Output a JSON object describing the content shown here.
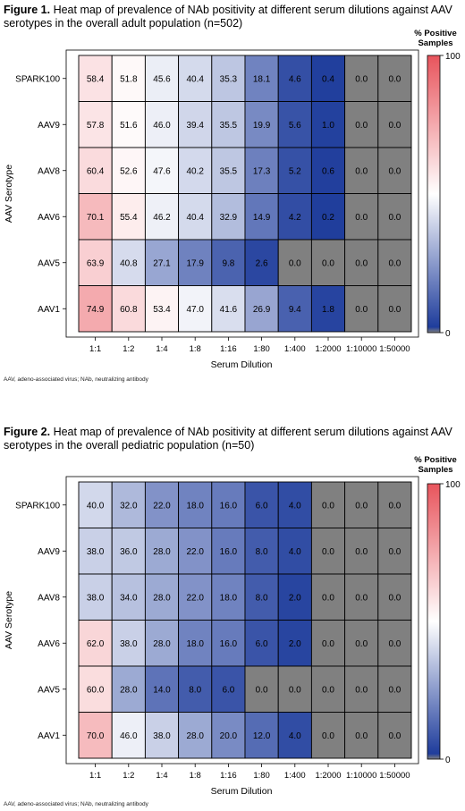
{
  "figures": [
    {
      "caption_label": "Figure 1.",
      "caption_text": " Heat map of prevalence of NAb positivity at different serum dilutions against AAV serotypes in the overall adult population (n=502)",
      "footnote": "AAV, adeno-associated virus; NAb, neutralizing antibody"
    },
    {
      "caption_label": "Figure 2.",
      "caption_text": " Heat map of prevalence of NAb positivity at different serum dilutions against AAV serotypes in the overall pediatric population (n=50)",
      "footnote": "AAV, adeno-associated virus; NAb, neutralizing antibody"
    }
  ],
  "colors": {
    "high": "#e8545c",
    "mid": "#ffffff",
    "low": "#1f3d9c",
    "zero": "#808080",
    "border": "#000000"
  },
  "chart_data": [
    {
      "type": "heatmap",
      "xlabel": "Serum Dilution",
      "ylabel": "AAV Serotype",
      "legend_title": [
        "% Positive",
        "Samples"
      ],
      "legend_range": [
        0,
        100
      ],
      "legend_ticks": [
        "100",
        "0"
      ],
      "x": [
        "1:1",
        "1:2",
        "1:4",
        "1:8",
        "1:16",
        "1:80",
        "1:400",
        "1:2000",
        "1:10000",
        "1:50000"
      ],
      "y": [
        "SPARK100",
        "AAV9",
        "AAV8",
        "AAV6",
        "AAV5",
        "AAV1"
      ],
      "values": [
        [
          58.4,
          51.8,
          45.6,
          40.4,
          35.3,
          18.1,
          4.6,
          0.4,
          0.0,
          0.0
        ],
        [
          57.8,
          51.6,
          46.0,
          39.4,
          35.5,
          19.9,
          5.6,
          1.0,
          0.0,
          0.0
        ],
        [
          60.4,
          52.6,
          47.6,
          40.2,
          35.5,
          17.3,
          5.2,
          0.6,
          0.0,
          0.0
        ],
        [
          70.1,
          55.4,
          46.2,
          40.4,
          32.9,
          14.9,
          4.2,
          0.2,
          0.0,
          0.0
        ],
        [
          63.9,
          40.8,
          27.1,
          17.9,
          9.8,
          2.6,
          0.0,
          0.0,
          0.0,
          0.0
        ],
        [
          74.9,
          60.8,
          53.4,
          47.0,
          41.6,
          26.9,
          9.4,
          1.8,
          0.0,
          0.0
        ]
      ],
      "labels": [
        [
          "58.4",
          "51.8",
          "45.6",
          "40.4",
          "35.3",
          "18.1",
          "4.6",
          "0.4",
          "0.0",
          "0.0"
        ],
        [
          "57.8",
          "51.6",
          "46.0",
          "39.4",
          "35.5",
          "19.9",
          "5.6",
          "1.0",
          "0.0",
          "0.0"
        ],
        [
          "60.4",
          "52.6",
          "47.6",
          "40.2",
          "35.5",
          "17.3",
          "5.2",
          "0.6",
          "0.0",
          "0.0"
        ],
        [
          "70.1",
          "55.4",
          "46.2",
          "40.4",
          "32.9",
          "14.9",
          "4.2",
          "0.2",
          "0.0",
          "0.0"
        ],
        [
          "63.9",
          "40.8",
          "27.1",
          "17.9",
          "9.8",
          "2.6",
          "0.0",
          "0.0",
          "0.0",
          "0.0"
        ],
        [
          "74.9",
          "60.8",
          "53.4",
          "47.0",
          "41.6",
          "26.9",
          "9.4",
          "1.8",
          "0.0",
          "0.0"
        ]
      ]
    },
    {
      "type": "heatmap",
      "xlabel": "Serum Dilution",
      "ylabel": "AAV Serotype",
      "legend_title": [
        "% Positive",
        "Samples"
      ],
      "legend_range": [
        0,
        100
      ],
      "legend_ticks": [
        "100",
        "0"
      ],
      "x": [
        "1:1",
        "1:2",
        "1:4",
        "1:8",
        "1:16",
        "1:80",
        "1:400",
        "1:2000",
        "1:10000",
        "1:50000"
      ],
      "y": [
        "SPARK100",
        "AAV9",
        "AAV8",
        "AAV6",
        "AAV5",
        "AAV1"
      ],
      "values": [
        [
          40.0,
          32.0,
          22.0,
          18.0,
          16.0,
          6.0,
          4.0,
          0.0,
          0.0,
          0.0
        ],
        [
          38.0,
          36.0,
          28.0,
          22.0,
          16.0,
          8.0,
          4.0,
          0.0,
          0.0,
          0.0
        ],
        [
          38.0,
          34.0,
          28.0,
          22.0,
          18.0,
          8.0,
          2.0,
          0.0,
          0.0,
          0.0
        ],
        [
          62.0,
          38.0,
          28.0,
          18.0,
          16.0,
          6.0,
          2.0,
          0.0,
          0.0,
          0.0
        ],
        [
          60.0,
          28.0,
          14.0,
          8.0,
          6.0,
          0.0,
          0.0,
          0.0,
          0.0,
          0.0
        ],
        [
          70.0,
          46.0,
          38.0,
          28.0,
          20.0,
          12.0,
          4.0,
          0.0,
          0.0,
          0.0
        ]
      ],
      "labels": [
        [
          "40.0",
          "32.0",
          "22.0",
          "18.0",
          "16.0",
          "6.0",
          "4.0",
          "0.0",
          "0.0",
          "0.0"
        ],
        [
          "38.0",
          "36.0",
          "28.0",
          "22.0",
          "16.0",
          "8.0",
          "4.0",
          "0.0",
          "0.0",
          "0.0"
        ],
        [
          "38.0",
          "34.0",
          "28.0",
          "22.0",
          "18.0",
          "8.0",
          "2.0",
          "0.0",
          "0.0",
          "0.0"
        ],
        [
          "62.0",
          "38.0",
          "28.0",
          "18.0",
          "16.0",
          "6.0",
          "2.0",
          "0.0",
          "0.0",
          "0.0"
        ],
        [
          "60.0",
          "28.0",
          "14.0",
          "8.0",
          "6.0",
          "0.0",
          "0.0",
          "0.0",
          "0.0",
          "0.0"
        ],
        [
          "70.0",
          "46.0",
          "38.0",
          "28.0",
          "20.0",
          "12.0",
          "4.0",
          "0.0",
          "0.0",
          "0.0"
        ]
      ]
    }
  ]
}
